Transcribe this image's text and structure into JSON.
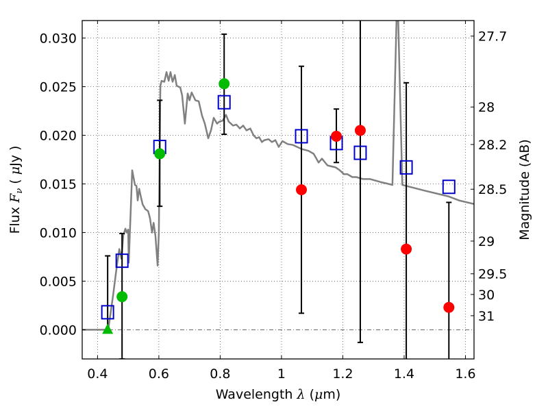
{
  "chart_data": {
    "type": "scatter",
    "title": "",
    "xlabel": "Wavelength  λ (μm)",
    "ylabel": "Flux  F_ν  ( μJy )",
    "ylabel_parts": {
      "prefix": "Flux ",
      "symbol": "F",
      "subscript": "ν",
      "unit_open": " ( ",
      "mu": "μ",
      "unit": "Jy )"
    },
    "xlabel_parts": {
      "prefix": "Wavelength  ",
      "symbol": "λ",
      "unit_open": " (",
      "mu": "μ",
      "unit": "m)"
    },
    "y2label": "Magnitude (AB)",
    "xlim": [
      0.35,
      1.628
    ],
    "ylim": [
      -0.003,
      0.0318
    ],
    "grid": true,
    "legend": "none",
    "x_ticks": [
      {
        "value": 0.4,
        "label": "0.4"
      },
      {
        "value": 0.6,
        "label": "0.6"
      },
      {
        "value": 0.8,
        "label": "0.8"
      },
      {
        "value": 1.0,
        "label": "1"
      },
      {
        "value": 1.2,
        "label": "1.2"
      },
      {
        "value": 1.4,
        "label": "1.4"
      },
      {
        "value": 1.6,
        "label": "1.6"
      }
    ],
    "y_ticks": [
      {
        "value": 0.0,
        "label": "0.000"
      },
      {
        "value": 0.005,
        "label": "0.005"
      },
      {
        "value": 0.01,
        "label": "0.010"
      },
      {
        "value": 0.015,
        "label": "0.015"
      },
      {
        "value": 0.02,
        "label": "0.020"
      },
      {
        "value": 0.025,
        "label": "0.025"
      },
      {
        "value": 0.03,
        "label": "0.030"
      }
    ],
    "y2_ticks": [
      {
        "mag": 27.7,
        "label": "27.7"
      },
      {
        "mag": 28.0,
        "label": "28"
      },
      {
        "mag": 28.2,
        "label": "28.2"
      },
      {
        "mag": 28.5,
        "label": "28.5"
      },
      {
        "mag": 29.0,
        "label": "29"
      },
      {
        "mag": 29.5,
        "label": "29.5"
      },
      {
        "mag": 30.0,
        "label": "30"
      },
      {
        "mag": 31.0,
        "label": "31"
      }
    ],
    "ab_zeropoint_ujy": 23.9,
    "colors": {
      "model": "#808080",
      "model_points": "#0000cc",
      "detections_optical": "#00bb00",
      "detections_ir": "#ff0000",
      "errorbar": "#000000",
      "grid": "#555555"
    },
    "series": [
      {
        "name": "SED model",
        "kind": "line",
        "points": [
          [
            0.35,
            0.0
          ],
          [
            0.435,
            0.0
          ],
          [
            0.451,
            0.0036
          ],
          [
            0.464,
            0.0068
          ],
          [
            0.471,
            0.0083
          ],
          [
            0.478,
            0.0073
          ],
          [
            0.484,
            0.0097
          ],
          [
            0.491,
            0.0104
          ],
          [
            0.495,
            0.01
          ],
          [
            0.5,
            0.0103
          ],
          [
            0.502,
            0.0069
          ],
          [
            0.513,
            0.0164
          ],
          [
            0.522,
            0.0149
          ],
          [
            0.527,
            0.0148
          ],
          [
            0.531,
            0.0133
          ],
          [
            0.536,
            0.0145
          ],
          [
            0.542,
            0.0136
          ],
          [
            0.547,
            0.0129
          ],
          [
            0.556,
            0.0124
          ],
          [
            0.565,
            0.0122
          ],
          [
            0.571,
            0.0115
          ],
          [
            0.578,
            0.01
          ],
          [
            0.583,
            0.011
          ],
          [
            0.589,
            0.0096
          ],
          [
            0.596,
            0.0066
          ],
          [
            0.6,
            0.01
          ],
          [
            0.605,
            0.0251
          ],
          [
            0.609,
            0.0256
          ],
          [
            0.618,
            0.0255
          ],
          [
            0.625,
            0.0265
          ],
          [
            0.632,
            0.0256
          ],
          [
            0.638,
            0.0265
          ],
          [
            0.645,
            0.0255
          ],
          [
            0.652,
            0.0262
          ],
          [
            0.658,
            0.0251
          ],
          [
            0.67,
            0.0249
          ],
          [
            0.676,
            0.0241
          ],
          [
            0.685,
            0.0212
          ],
          [
            0.694,
            0.0243
          ],
          [
            0.7,
            0.0236
          ],
          [
            0.707,
            0.0244
          ],
          [
            0.719,
            0.0236
          ],
          [
            0.73,
            0.0235
          ],
          [
            0.741,
            0.022
          ],
          [
            0.75,
            0.0212
          ],
          [
            0.761,
            0.0197
          ],
          [
            0.77,
            0.0205
          ],
          [
            0.779,
            0.0218
          ],
          [
            0.79,
            0.0212
          ],
          [
            0.797,
            0.0214
          ],
          [
            0.808,
            0.0215
          ],
          [
            0.819,
            0.0221
          ],
          [
            0.828,
            0.0214
          ],
          [
            0.842,
            0.021
          ],
          [
            0.853,
            0.0211
          ],
          [
            0.864,
            0.0207
          ],
          [
            0.875,
            0.021
          ],
          [
            0.886,
            0.0205
          ],
          [
            0.898,
            0.0207
          ],
          [
            0.909,
            0.02
          ],
          [
            0.918,
            0.0197
          ],
          [
            0.927,
            0.0198
          ],
          [
            0.936,
            0.0193
          ],
          [
            0.944,
            0.0195
          ],
          [
            0.958,
            0.0196
          ],
          [
            0.969,
            0.0193
          ],
          [
            0.98,
            0.0195
          ],
          [
            0.991,
            0.0188
          ],
          [
            1.003,
            0.0194
          ],
          [
            1.02,
            0.0191
          ],
          [
            1.038,
            0.019
          ],
          [
            1.065,
            0.0186
          ],
          [
            1.088,
            0.0184
          ],
          [
            1.105,
            0.0181
          ],
          [
            1.121,
            0.0172
          ],
          [
            1.132,
            0.0176
          ],
          [
            1.15,
            0.0169
          ],
          [
            1.177,
            0.0167
          ],
          [
            1.19,
            0.0164
          ],
          [
            1.204,
            0.016
          ],
          [
            1.215,
            0.016
          ],
          [
            1.231,
            0.0157
          ],
          [
            1.244,
            0.0157
          ],
          [
            1.266,
            0.0155
          ],
          [
            1.289,
            0.0155
          ],
          [
            1.322,
            0.0152
          ],
          [
            1.362,
            0.0149
          ],
          [
            1.378,
            0.0354
          ],
          [
            1.394,
            0.0149
          ],
          [
            1.468,
            0.0143
          ],
          [
            1.546,
            0.0137
          ],
          [
            1.579,
            0.0133
          ],
          [
            1.633,
            0.0129
          ]
        ]
      },
      {
        "name": "Model photometry",
        "kind": "scatter",
        "marker": "open-square",
        "x": [
          0.433,
          0.48,
          0.603,
          0.813,
          1.065,
          1.179,
          1.257,
          1.407,
          1.546
        ],
        "y": [
          0.0018,
          0.0071,
          0.0188,
          0.0234,
          0.0199,
          0.0192,
          0.0182,
          0.0167,
          0.0147
        ]
      },
      {
        "name": "Observed (optical)",
        "kind": "scatter",
        "marker": "filled-circle",
        "x": [
          0.48,
          0.603,
          0.813
        ],
        "y": [
          0.0034,
          0.0181,
          0.0253
        ]
      },
      {
        "name": "Observed (optical, limit)",
        "kind": "scatter",
        "marker": "filled-triangle",
        "x": [
          0.433
        ],
        "y": [
          0.0
        ]
      },
      {
        "name": "Observed (near-IR)",
        "kind": "scatter",
        "marker": "filled-circle",
        "x": [
          1.065,
          1.179,
          1.257,
          1.407,
          1.546
        ],
        "y": [
          0.0144,
          0.0199,
          0.0205,
          0.0083,
          0.0023
        ]
      },
      {
        "name": "Error bars",
        "kind": "errorbar",
        "x": [
          0.433,
          0.48,
          0.603,
          0.813,
          1.065,
          1.179,
          1.257,
          1.407,
          1.546
        ],
        "low": [
          0.0,
          -0.003,
          0.0127,
          0.0201,
          0.0017,
          0.0172,
          -0.0013,
          -0.008,
          -0.008
        ],
        "high": [
          0.0076,
          0.0099,
          0.0236,
          0.0304,
          0.0271,
          0.0227,
          0.042,
          0.0254,
          0.0131
        ]
      }
    ]
  }
}
